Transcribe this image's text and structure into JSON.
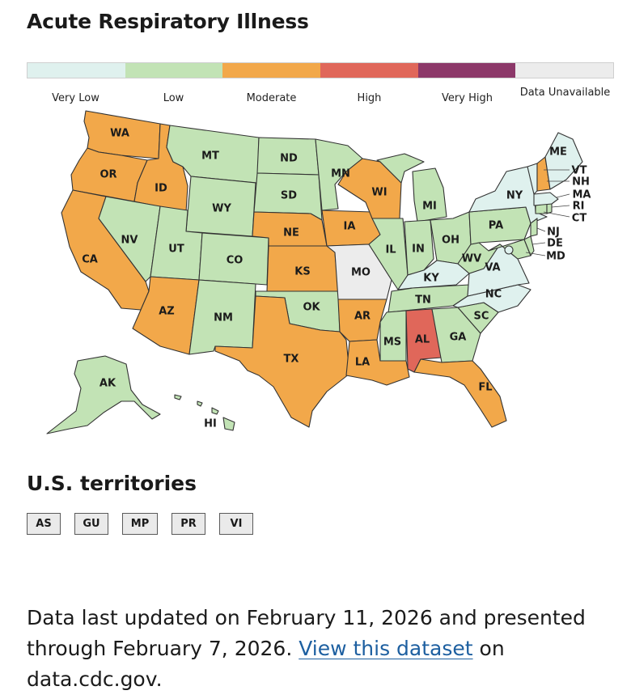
{
  "title": "Acute Respiratory Illness",
  "legend": [
    {
      "label": "Very Low",
      "color": "#dff1ee"
    },
    {
      "label": "Low",
      "color": "#c2e3b5"
    },
    {
      "label": "Moderate",
      "color": "#f2a84a"
    },
    {
      "label": "High",
      "color": "#e0675a"
    },
    {
      "label": "Very High",
      "color": "#8c3869"
    },
    {
      "label": "Data Unavailable",
      "color": "#ececec"
    }
  ],
  "states": {
    "WA": "Moderate",
    "OR": "Moderate",
    "CA": "Moderate",
    "ID": "Moderate",
    "NV": "Low",
    "MT": "Low",
    "WY": "Low",
    "UT": "Low",
    "AZ": "Moderate",
    "CO": "Low",
    "NM": "Low",
    "ND": "Low",
    "SD": "Low",
    "NE": "Moderate",
    "KS": "Moderate",
    "OK": "Low",
    "TX": "Moderate",
    "MN": "Low",
    "IA": "Moderate",
    "MO": "Data Unavailable",
    "AR": "Moderate",
    "LA": "Moderate",
    "WI": "Moderate",
    "IL": "Low",
    "MI": "Low",
    "IN": "Low",
    "OH": "Low",
    "KY": "Very Low",
    "TN": "Low",
    "MS": "Low",
    "AL": "High",
    "GA": "Low",
    "FL": "Moderate",
    "SC": "Low",
    "NC": "Very Low",
    "VA": "Very Low",
    "WV": "Low",
    "PA": "Low",
    "NY": "Very Low",
    "ME": "Very Low",
    "VT": "Very Low",
    "NH": "Moderate",
    "MA": "Very Low",
    "RI": "Low",
    "CT": "Low",
    "NJ": "Low",
    "DE": "Low",
    "MD": "Low",
    "DC": "Very Low",
    "AK": "Low",
    "HI": "Low"
  },
  "territories_title": "U.S. territories",
  "territories": [
    "AS",
    "GU",
    "MP",
    "PR",
    "VI"
  ],
  "footer": {
    "text_before": "Data last updated on February 11, 2026 and presented through February 7, 2026. ",
    "link_text": "View this dataset",
    "text_after": " on data.cdc.gov."
  }
}
